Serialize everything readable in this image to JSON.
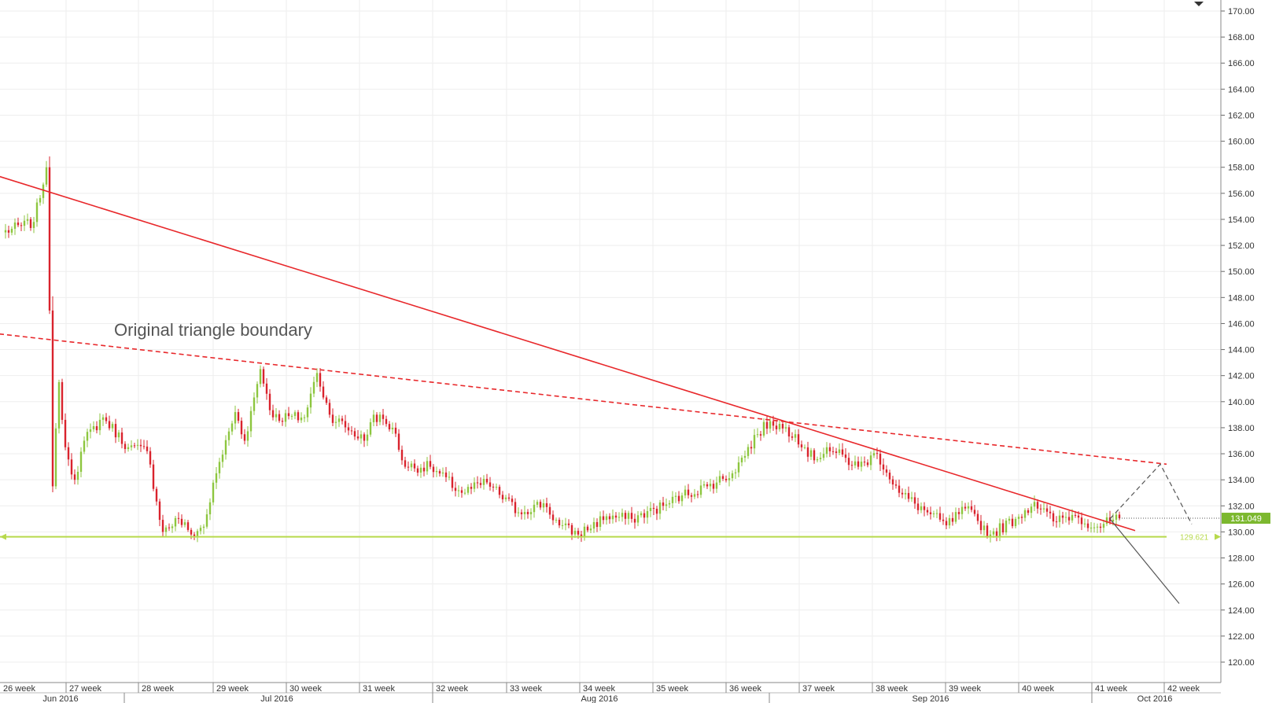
{
  "chart_data": {
    "type": "candlestick",
    "annotation": "Original triangle boundary",
    "price_label": "131.049",
    "support_label": "129.621",
    "ylim": [
      118.8,
      171.0
    ],
    "y_ticks": [
      "120.00",
      "122.00",
      "124.00",
      "126.00",
      "128.00",
      "130.00",
      "132.00",
      "134.00",
      "136.00",
      "138.00",
      "140.00",
      "142.00",
      "144.00",
      "146.00",
      "148.00",
      "150.00",
      "152.00",
      "154.00",
      "156.00",
      "158.00",
      "160.00",
      "162.00",
      "164.00",
      "166.00",
      "168.00",
      "170.00"
    ],
    "week_labels": [
      "26 week",
      "27 week",
      "28 week",
      "29 week",
      "30 week",
      "31 week",
      "32 week",
      "33 week",
      "34 week",
      "35 week",
      "36 week",
      "37 week",
      "38 week",
      "39 week",
      "40 week",
      "41 week",
      "42 week"
    ],
    "month_labels": [
      "Jun 2016",
      "Jul 2016",
      "Aug 2016",
      "Sep 2016",
      "Oct 2016"
    ],
    "bar_count": 370,
    "anchors": [
      {
        "bar": 0,
        "price": 153.0
      },
      {
        "bar": 10,
        "price": 153.8
      },
      {
        "bar": 14,
        "price": 158.0
      },
      {
        "bar": 15,
        "price": 147.0
      },
      {
        "bar": 16,
        "price": 133.5
      },
      {
        "bar": 18,
        "price": 141.5
      },
      {
        "bar": 20,
        "price": 136.5
      },
      {
        "bar": 23,
        "price": 134.0
      },
      {
        "bar": 26,
        "price": 137.0
      },
      {
        "bar": 32,
        "price": 138.8
      },
      {
        "bar": 40,
        "price": 136.5
      },
      {
        "bar": 46,
        "price": 136.2
      },
      {
        "bar": 51,
        "price": 130.0
      },
      {
        "bar": 56,
        "price": 131.0
      },
      {
        "bar": 60,
        "price": 129.8
      },
      {
        "bar": 64,
        "price": 130.4
      },
      {
        "bar": 68,
        "price": 134.5
      },
      {
        "bar": 74,
        "price": 139.2
      },
      {
        "bar": 77,
        "price": 137.0
      },
      {
        "bar": 82,
        "price": 142.5
      },
      {
        "bar": 86,
        "price": 138.8
      },
      {
        "bar": 96,
        "price": 138.8
      },
      {
        "bar": 100,
        "price": 142.2
      },
      {
        "bar": 104,
        "price": 139.0
      },
      {
        "bar": 115,
        "price": 137.0
      },
      {
        "bar": 118,
        "price": 139.0
      },
      {
        "bar": 124,
        "price": 138.0
      },
      {
        "bar": 128,
        "price": 135.0
      },
      {
        "bar": 136,
        "price": 135.0
      },
      {
        "bar": 146,
        "price": 133.0
      },
      {
        "bar": 154,
        "price": 133.8
      },
      {
        "bar": 164,
        "price": 131.5
      },
      {
        "bar": 172,
        "price": 132.2
      },
      {
        "bar": 177,
        "price": 130.5
      },
      {
        "bar": 183,
        "price": 129.8
      },
      {
        "bar": 192,
        "price": 131.2
      },
      {
        "bar": 200,
        "price": 131.0
      },
      {
        "bar": 210,
        "price": 132.0
      },
      {
        "bar": 216,
        "price": 132.8
      },
      {
        "bar": 224,
        "price": 133.5
      },
      {
        "bar": 232,
        "price": 134.5
      },
      {
        "bar": 240,
        "price": 137.5
      },
      {
        "bar": 244,
        "price": 138.5
      },
      {
        "bar": 252,
        "price": 137.5
      },
      {
        "bar": 258,
        "price": 135.5
      },
      {
        "bar": 262,
        "price": 136.5
      },
      {
        "bar": 272,
        "price": 135.0
      },
      {
        "bar": 278,
        "price": 136.0
      },
      {
        "bar": 285,
        "price": 133.0
      },
      {
        "bar": 294,
        "price": 131.5
      },
      {
        "bar": 300,
        "price": 130.5
      },
      {
        "bar": 306,
        "price": 131.8
      },
      {
        "bar": 314,
        "price": 129.8
      },
      {
        "bar": 322,
        "price": 131.0
      },
      {
        "bar": 328,
        "price": 132.3
      },
      {
        "bar": 334,
        "price": 130.8
      },
      {
        "bar": 340,
        "price": 131.3
      },
      {
        "bar": 348,
        "price": 130.4
      },
      {
        "bar": 355,
        "price": 131.05
      }
    ],
    "trend_lines": [
      {
        "name": "descending-trendline",
        "style": "solid",
        "color": "#e8282b",
        "points": [
          [
            -1,
            157.3
          ],
          [
            360,
            130.1
          ]
        ]
      },
      {
        "name": "original-triangle-boundary",
        "style": "dashed",
        "color": "#e8282b",
        "points": [
          [
            -1,
            145.2
          ],
          [
            370,
            135.2
          ]
        ]
      },
      {
        "name": "support-line",
        "style": "solid",
        "color": "#b7d94c",
        "points": [
          [
            -1,
            129.621
          ],
          [
            370,
            129.621
          ]
        ]
      }
    ],
    "projections": [
      {
        "name": "breakout-up-projection",
        "style": "dashed",
        "color": "#555555",
        "points": [
          [
            352,
            131.0
          ],
          [
            368,
            135.2
          ],
          [
            378,
            130.6
          ]
        ]
      },
      {
        "name": "breakdown-projection",
        "style": "solid",
        "color": "#555555",
        "points": [
          [
            352,
            131.0
          ],
          [
            374,
            124.5
          ]
        ]
      }
    ],
    "colors": {
      "up": "#8dc63f",
      "down": "#d9232d",
      "trend": "#e8282b",
      "support": "#b7d94c",
      "price_label_bg": "#7cb82f",
      "grid": "#eeeeee",
      "axis_text": "#333333"
    },
    "grid": true
  }
}
